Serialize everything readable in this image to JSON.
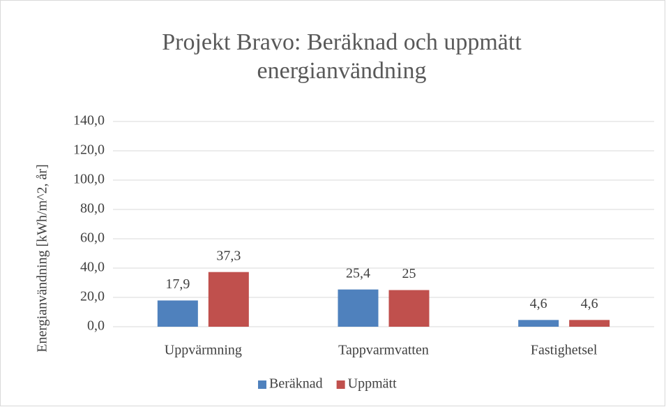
{
  "chart_data": {
    "type": "bar",
    "title": [
      "Projekt Bravo: Beräknad och uppmätt",
      "energianvändning"
    ],
    "y_label": "Energianvändning [kWh/m^2, år]",
    "categories": [
      "Uppvärmning",
      "Tappvarmvatten",
      "Fastighetsel"
    ],
    "series": [
      {
        "name": "Beräknad",
        "color": "#4f81bd",
        "values": [
          17.9,
          25.4,
          4.6
        ],
        "value_labels": [
          "17,9",
          "25,4",
          "4,6"
        ]
      },
      {
        "name": "Uppmätt",
        "color": "#c0504d",
        "values": [
          37.3,
          25,
          4.6
        ],
        "value_labels": [
          "37,3",
          "25",
          "4,6"
        ]
      }
    ],
    "ylim": [
      0,
      140
    ],
    "yticks": [
      {
        "value": 0,
        "label": "0,0"
      },
      {
        "value": 20,
        "label": "20,0"
      },
      {
        "value": 40,
        "label": "40,0"
      },
      {
        "value": 60,
        "label": "60,0"
      },
      {
        "value": 80,
        "label": "80,0"
      },
      {
        "value": 100,
        "label": "100,0"
      },
      {
        "value": 120,
        "label": "120,0"
      },
      {
        "value": 140,
        "label": "140,0"
      }
    ],
    "grid": true,
    "legend": "bottom"
  }
}
